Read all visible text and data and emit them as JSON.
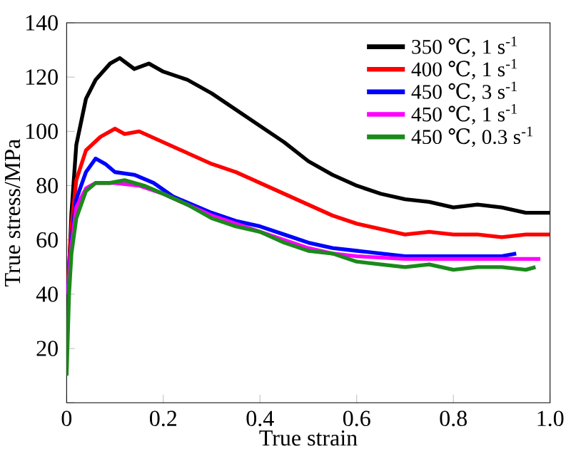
{
  "chart_data": {
    "type": "line",
    "xlabel": "True strain",
    "ylabel": "True stress/MPa",
    "xlim": [
      0,
      1
    ],
    "ylim": [
      0,
      140
    ],
    "xticks": [
      0,
      0.2,
      0.4,
      0.6,
      0.8,
      {
        "value": 1,
        "label": "1.0"
      }
    ],
    "yticks": [
      {
        "value": 0,
        "label": null
      },
      20,
      40,
      60,
      80,
      100,
      120,
      140
    ],
    "grid": false,
    "legend": "top right",
    "marker": "none",
    "line_style": "solid",
    "series": [
      {
        "name": "350 ℃, 1 s$^{-1}$",
        "color": "#000000",
        "x": [
          0.003,
          0.01,
          0.02,
          0.04,
          0.06,
          0.09,
          0.11,
          0.14,
          0.17,
          0.2,
          0.25,
          0.3,
          0.35,
          0.4,
          0.45,
          0.5,
          0.55,
          0.6,
          0.65,
          0.7,
          0.75,
          0.8,
          0.85,
          0.9,
          0.95,
          1.0
        ],
        "values": [
          40,
          70,
          95,
          112,
          119,
          125,
          127,
          123,
          125,
          122,
          119,
          114,
          108,
          102,
          96,
          89,
          84,
          80,
          77,
          75,
          74,
          72,
          73,
          72,
          70,
          70
        ]
      },
      {
        "name": "400 ℃, 1 s$^{-1}$",
        "color": "#ff0000",
        "x": [
          0.003,
          0.01,
          0.02,
          0.04,
          0.07,
          0.1,
          0.12,
          0.15,
          0.2,
          0.25,
          0.3,
          0.35,
          0.4,
          0.45,
          0.5,
          0.55,
          0.6,
          0.65,
          0.7,
          0.75,
          0.8,
          0.85,
          0.9,
          0.95,
          1.0
        ],
        "values": [
          45,
          65,
          82,
          93,
          98,
          101,
          99,
          100,
          96,
          92,
          88,
          85,
          81,
          77,
          73,
          69,
          66,
          64,
          62,
          63,
          62,
          62,
          61,
          62,
          62
        ]
      },
      {
        "name": "450 ℃, 3 s$^{-1}$",
        "color": "#0000ff",
        "x": [
          0.002,
          0.01,
          0.02,
          0.04,
          0.06,
          0.08,
          0.1,
          0.14,
          0.18,
          0.22,
          0.26,
          0.3,
          0.35,
          0.4,
          0.45,
          0.5,
          0.55,
          0.6,
          0.7,
          0.8,
          0.9,
          0.93
        ],
        "values": [
          40,
          60,
          75,
          85,
          90,
          88,
          85,
          84,
          81,
          76,
          73,
          70,
          67,
          65,
          62,
          59,
          57,
          56,
          54,
          54,
          54,
          55
        ]
      },
      {
        "name": "450 ℃, 1 s$^{-1}$",
        "color": "#ff00ff",
        "x": [
          0.002,
          0.01,
          0.02,
          0.04,
          0.06,
          0.1,
          0.15,
          0.2,
          0.25,
          0.3,
          0.35,
          0.4,
          0.45,
          0.5,
          0.55,
          0.6,
          0.7,
          0.8,
          0.9,
          0.98
        ],
        "values": [
          40,
          58,
          72,
          79,
          81,
          81,
          80,
          77,
          73,
          69,
          66,
          63,
          60,
          57,
          55,
          54,
          53,
          53,
          53,
          53
        ]
      },
      {
        "name": "450 ℃, 0.3 s$^{-1}$",
        "color": "#1a8a1a",
        "x": [
          0,
          0.005,
          0.01,
          0.02,
          0.04,
          0.06,
          0.09,
          0.12,
          0.16,
          0.2,
          0.25,
          0.3,
          0.35,
          0.4,
          0.45,
          0.5,
          0.55,
          0.6,
          0.65,
          0.7,
          0.75,
          0.8,
          0.85,
          0.9,
          0.95,
          0.97
        ],
        "values": [
          10,
          40,
          55,
          68,
          78,
          81,
          81,
          82,
          80,
          77,
          73,
          68,
          65,
          63,
          59,
          56,
          55,
          52,
          51,
          50,
          51,
          49,
          50,
          50,
          49,
          50
        ]
      }
    ]
  }
}
